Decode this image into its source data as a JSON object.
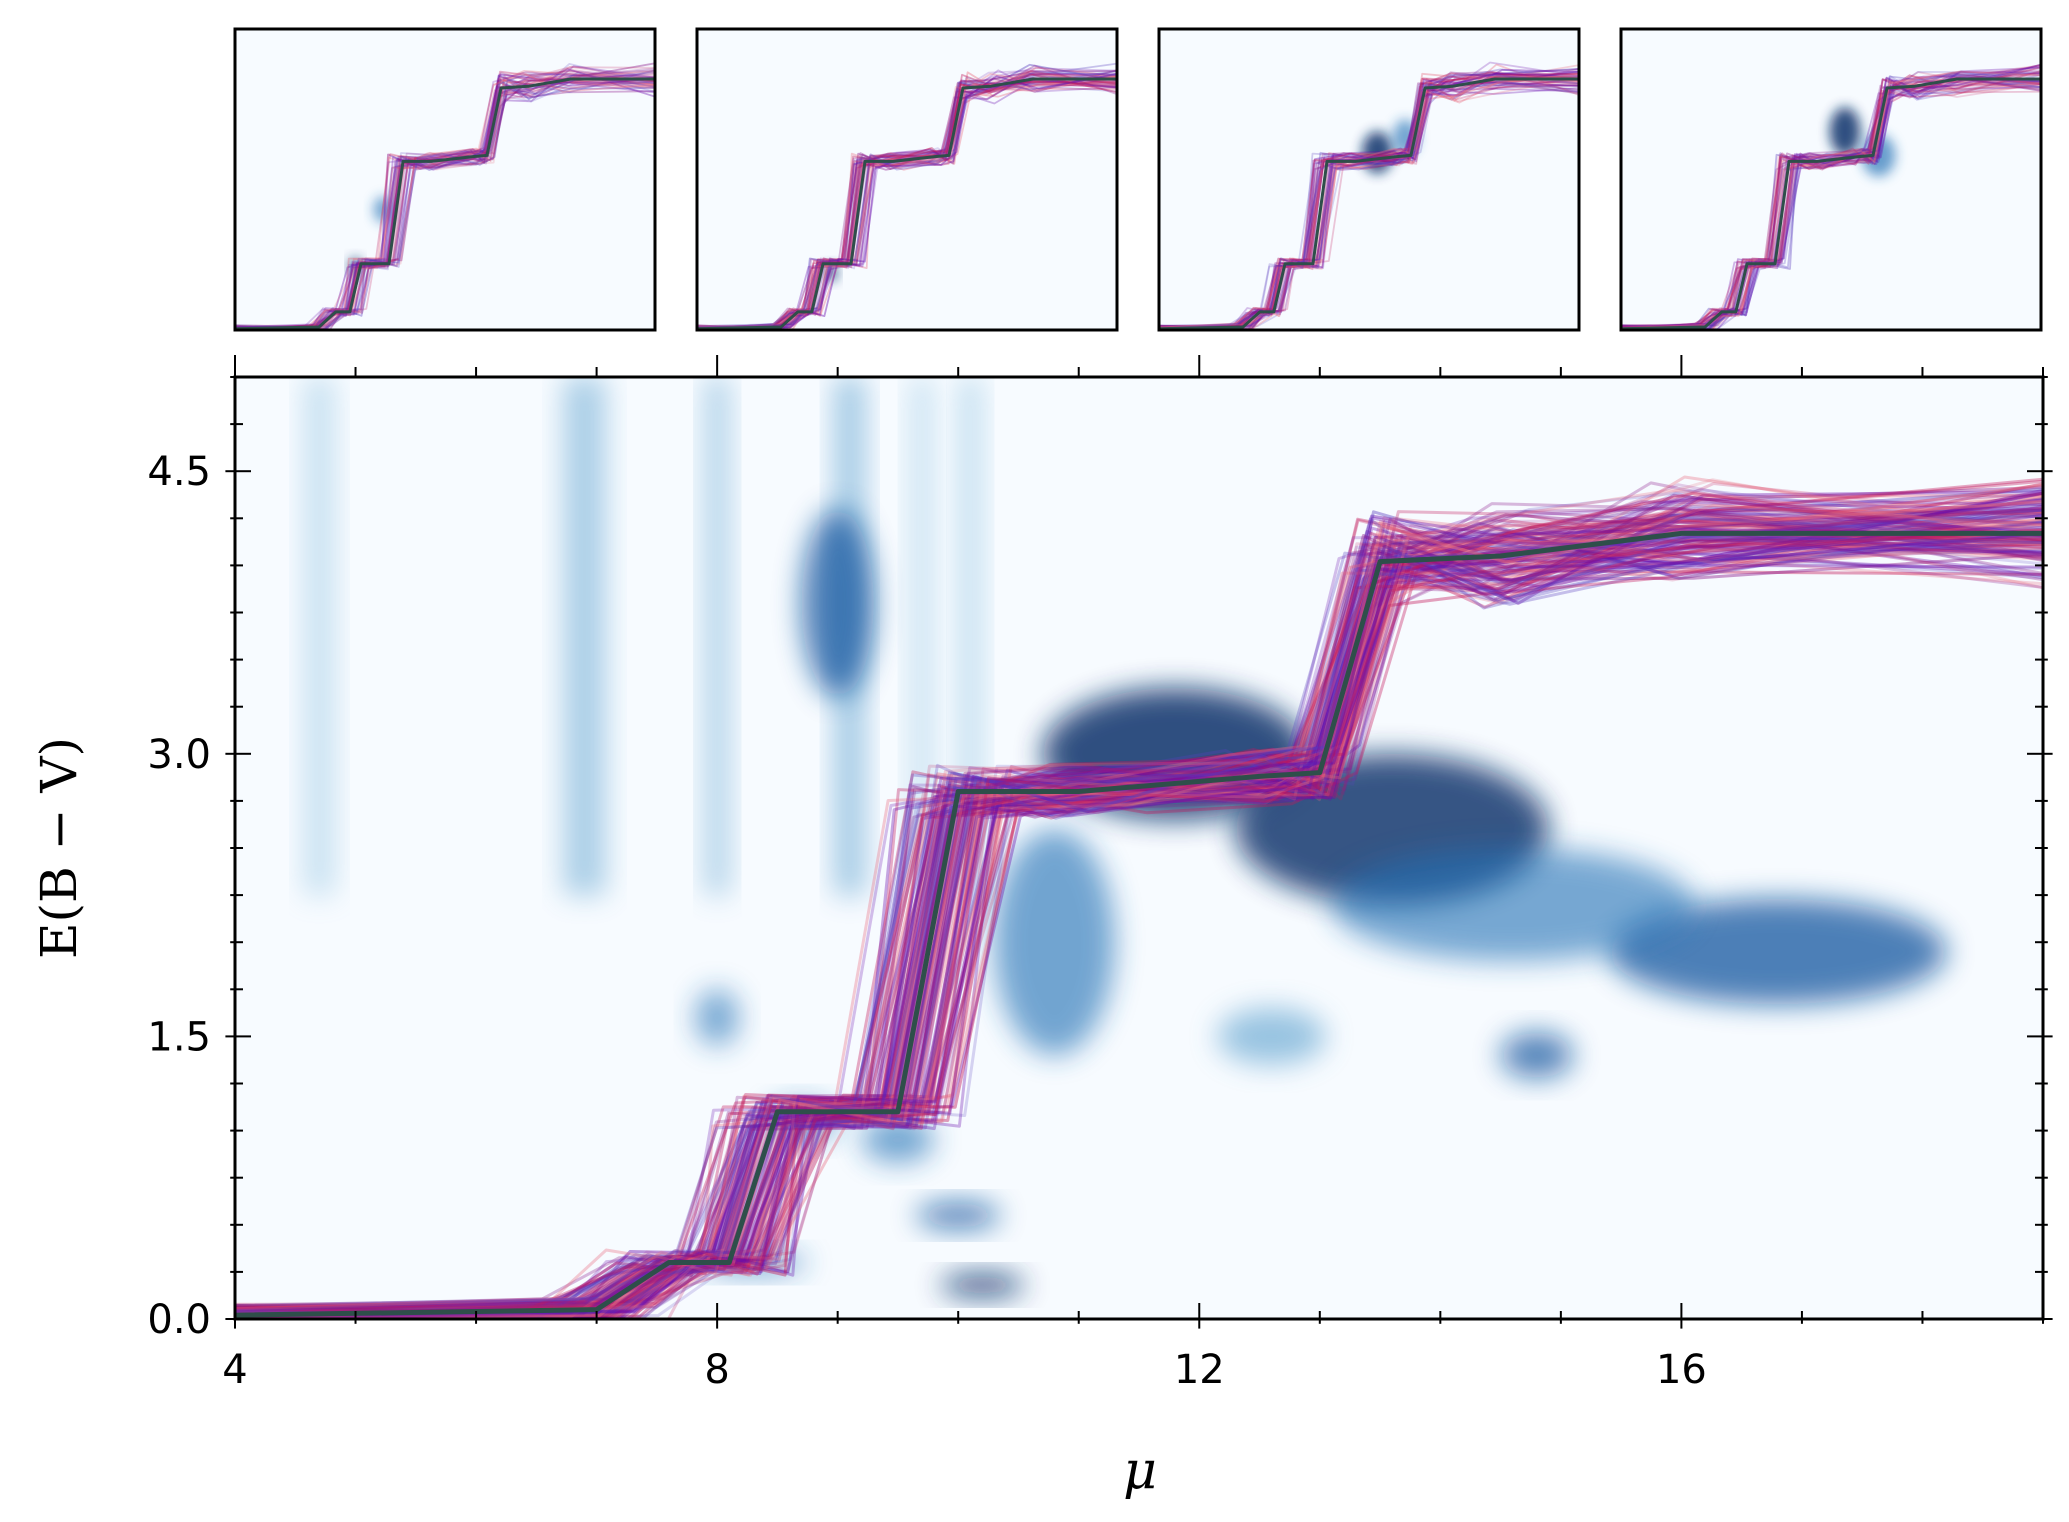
{
  "chart_data": [
    {
      "type": "heatmap",
      "role": "main",
      "title": "",
      "xlabel": "μ",
      "ylabel": "E(B − V)",
      "xlim": [
        4,
        19
      ],
      "ylim": [
        0,
        5
      ],
      "xticks": [
        4,
        8,
        12,
        16
      ],
      "xtick_labels": [
        "4",
        "8",
        "12",
        "16"
      ],
      "yticks": [
        0.0,
        1.5,
        3.0,
        4.5
      ],
      "ytick_labels": [
        "0.0",
        "1.5",
        "3.0",
        "4.5"
      ],
      "colormap": "Blues",
      "grid": false,
      "density_blobs": [
        {
          "mu": 11.8,
          "ebv": 3.0,
          "sx": 1.1,
          "sy": 0.35,
          "w": 1.0
        },
        {
          "mu": 13.6,
          "ebv": 2.6,
          "sx": 1.3,
          "sy": 0.4,
          "w": 0.95
        },
        {
          "mu": 16.8,
          "ebv": 1.95,
          "sx": 1.4,
          "sy": 0.28,
          "w": 0.75
        },
        {
          "mu": 14.6,
          "ebv": 2.2,
          "sx": 1.5,
          "sy": 0.3,
          "w": 0.5
        },
        {
          "mu": 10.8,
          "ebv": 2.0,
          "sx": 0.5,
          "sy": 0.6,
          "w": 0.55
        },
        {
          "mu": 9.0,
          "ebv": 3.8,
          "sx": 0.3,
          "sy": 0.5,
          "w": 0.75
        },
        {
          "mu": 10.2,
          "ebv": 0.18,
          "sx": 0.35,
          "sy": 0.06,
          "w": 0.95
        },
        {
          "mu": 10.0,
          "ebv": 0.55,
          "sx": 0.35,
          "sy": 0.07,
          "w": 0.75
        },
        {
          "mu": 8.3,
          "ebv": 0.3,
          "sx": 0.45,
          "sy": 0.06,
          "w": 0.55
        },
        {
          "mu": 14.8,
          "ebv": 1.4,
          "sx": 0.3,
          "sy": 0.12,
          "w": 0.7
        },
        {
          "mu": 12.6,
          "ebv": 1.5,
          "sx": 0.45,
          "sy": 0.15,
          "w": 0.35
        },
        {
          "mu": 8.0,
          "ebv": 1.6,
          "sx": 0.18,
          "sy": 0.15,
          "w": 0.5
        },
        {
          "mu": 9.5,
          "ebv": 0.95,
          "sx": 0.3,
          "sy": 0.12,
          "w": 0.55
        },
        {
          "mu": 8.7,
          "ebv": 1.05,
          "sx": 0.3,
          "sy": 0.1,
          "w": 0.5
        }
      ],
      "column_streaks": [
        {
          "mu": 4.7,
          "w": 0.25,
          "dens": 0.35
        },
        {
          "mu": 6.9,
          "w": 0.35,
          "dens": 0.5
        },
        {
          "mu": 8.0,
          "w": 0.2,
          "dens": 0.45
        },
        {
          "mu": 9.1,
          "w": 0.25,
          "dens": 0.6
        },
        {
          "mu": 10.1,
          "w": 0.2,
          "dens": 0.4
        },
        {
          "mu": 9.7,
          "w": 0.2,
          "dens": 0.3
        }
      ],
      "series": [
        {
          "role": "best-fit",
          "color": "#2e4f4a",
          "mu": [
            4.0,
            7.0,
            7.6,
            8.1,
            8.5,
            9.5,
            10.0,
            11.0,
            12.5,
            13.0,
            13.5,
            14.5,
            16.0,
            19.0
          ],
          "ebv": [
            0.02,
            0.05,
            0.3,
            0.3,
            1.1,
            1.1,
            2.8,
            2.8,
            2.88,
            2.9,
            4.02,
            4.05,
            4.17,
            4.17
          ]
        }
      ],
      "sample_colors": [
        "#6a0dad",
        "#8b1a8b",
        "#c2185b",
        "#e8697d",
        "#5b3fbf"
      ]
    },
    {
      "type": "heatmap",
      "role": "inset",
      "index": 1,
      "colormap": "Blues",
      "density_blobs": [
        {
          "mu": 8.3,
          "ebv": 1.05,
          "sx": 0.2,
          "sy": 0.15,
          "w": 1.0
        },
        {
          "mu": 9.3,
          "ebv": 2.0,
          "sx": 0.35,
          "sy": 0.22,
          "w": 0.55
        }
      ]
    },
    {
      "type": "heatmap",
      "role": "inset",
      "index": 2,
      "colormap": "Blues",
      "density_blobs": [
        {
          "mu": 8.8,
          "ebv": 0.95,
          "sx": 0.2,
          "sy": 0.14,
          "w": 1.0
        }
      ]
    },
    {
      "type": "heatmap",
      "role": "inset",
      "index": 3,
      "colormap": "Blues",
      "density_blobs": [
        {
          "mu": 11.8,
          "ebv": 2.95,
          "sx": 0.55,
          "sy": 0.35,
          "w": 1.0
        },
        {
          "mu": 12.8,
          "ebv": 3.2,
          "sx": 0.45,
          "sy": 0.3,
          "w": 0.55
        }
      ]
    },
    {
      "type": "heatmap",
      "role": "inset",
      "index": 4,
      "colormap": "Blues",
      "density_blobs": [
        {
          "mu": 12.0,
          "ebv": 3.3,
          "sx": 0.55,
          "sy": 0.4,
          "w": 1.0
        },
        {
          "mu": 13.2,
          "ebv": 2.9,
          "sx": 0.6,
          "sy": 0.35,
          "w": 0.65
        }
      ]
    }
  ]
}
